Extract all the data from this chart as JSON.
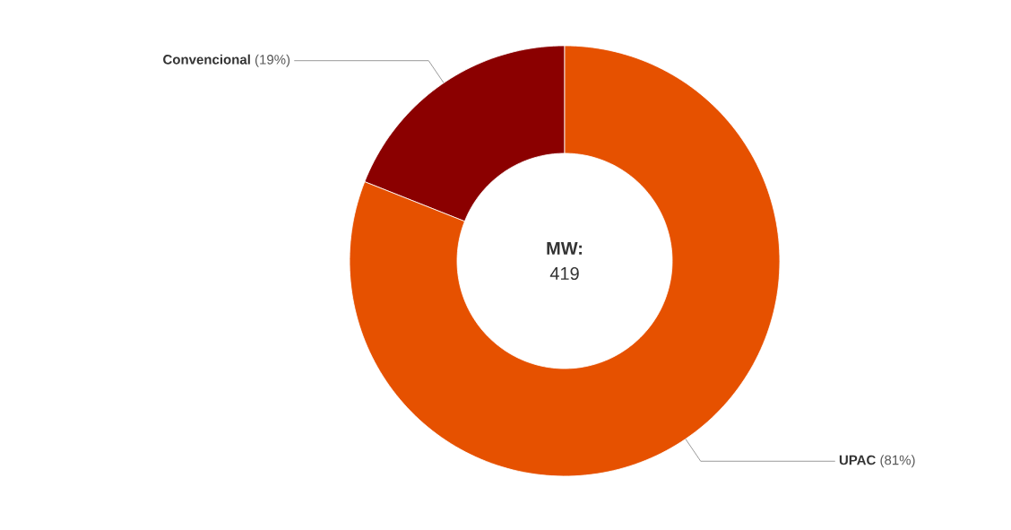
{
  "chart_data": {
    "type": "donut",
    "categories": [
      "Convencional",
      "UPAC"
    ],
    "values": [
      19,
      81
    ],
    "colors": [
      "#8b0000",
      "#e65100"
    ],
    "value_labels": [
      "(19%)",
      "(81%)"
    ],
    "annotations": [
      "**MW:**",
      "419"
    ]
  }
}
